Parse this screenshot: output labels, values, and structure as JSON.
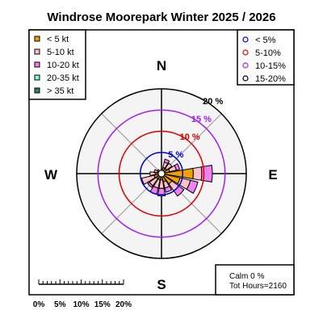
{
  "chart_data": {
    "type": "windrose",
    "title": "Windrose  Moorepark Winter 2025 / 2026",
    "directions": [
      "N",
      "NNE",
      "NE",
      "ENE",
      "E",
      "ESE",
      "SE",
      "SSE",
      "S",
      "SSW",
      "SW",
      "WSW",
      "W",
      "WNW",
      "NW",
      "NNW"
    ],
    "speed_bins": [
      {
        "label": "< 5  kt",
        "color": "#f0a000"
      },
      {
        "label": "5-10 kt",
        "color": "#ffc0cb"
      },
      {
        "label": "10-20 kt",
        "color": "#ee82ee"
      },
      {
        "label": "20-35 kt",
        "color": "#7fffd4"
      },
      {
        "label": "> 35 kt",
        "color": "#2e8b57"
      }
    ],
    "frequencies_percent": [
      [
        0.5,
        0.5,
        0.0,
        0.0,
        0.0
      ],
      [
        1.5,
        1.3,
        0.7,
        0.0,
        0.0
      ],
      [
        1.5,
        1.5,
        0.0,
        0.0,
        0.0
      ],
      [
        2.0,
        1.6,
        0.8,
        0.0,
        0.0
      ],
      [
        7.5,
        2.0,
        2.5,
        0.0,
        0.0
      ],
      [
        4.5,
        2.5,
        1.8,
        0.0,
        0.0
      ],
      [
        3.0,
        2.0,
        1.5,
        0.0,
        0.0
      ],
      [
        2.0,
        1.5,
        1.0,
        0.0,
        0.0
      ],
      [
        1.5,
        2.0,
        1.8,
        0.0,
        0.0
      ],
      [
        1.5,
        2.0,
        1.5,
        0.0,
        0.0
      ],
      [
        1.5,
        2.0,
        0.5,
        0.0,
        0.0
      ],
      [
        1.8,
        3.0,
        0.0,
        0.0,
        0.0
      ],
      [
        1.5,
        1.2,
        0.0,
        0.0,
        0.0
      ],
      [
        1.0,
        0.8,
        0.0,
        0.0,
        0.0
      ],
      [
        0.8,
        0.4,
        0.0,
        0.0,
        0.0
      ],
      [
        0.3,
        0.3,
        0.0,
        0.0,
        0.0
      ]
    ],
    "rings": [
      {
        "value": 5,
        "label": "5 %",
        "legend": "< 5%",
        "color": "#0000cc"
      },
      {
        "value": 10,
        "label": "10 %",
        "legend": "5-10%",
        "color": "#dd0000"
      },
      {
        "value": 15,
        "label": "15 %",
        "legend": "10-15%",
        "color": "#a020f0"
      },
      {
        "value": 20,
        "label": "20 %",
        "legend": "15-20%",
        "color": "#000000"
      }
    ],
    "compass_labels": {
      "n": "N",
      "e": "E",
      "s": "S",
      "w": "W"
    },
    "calm_text": "Calm 0 %",
    "total_hours_text": "Tot Hours=2160",
    "scale_labels": [
      "0%",
      "5%",
      "10%",
      "15%",
      "20%"
    ],
    "scale_values": [
      0,
      5,
      10,
      15,
      20
    ],
    "rmax_percent": 20
  }
}
